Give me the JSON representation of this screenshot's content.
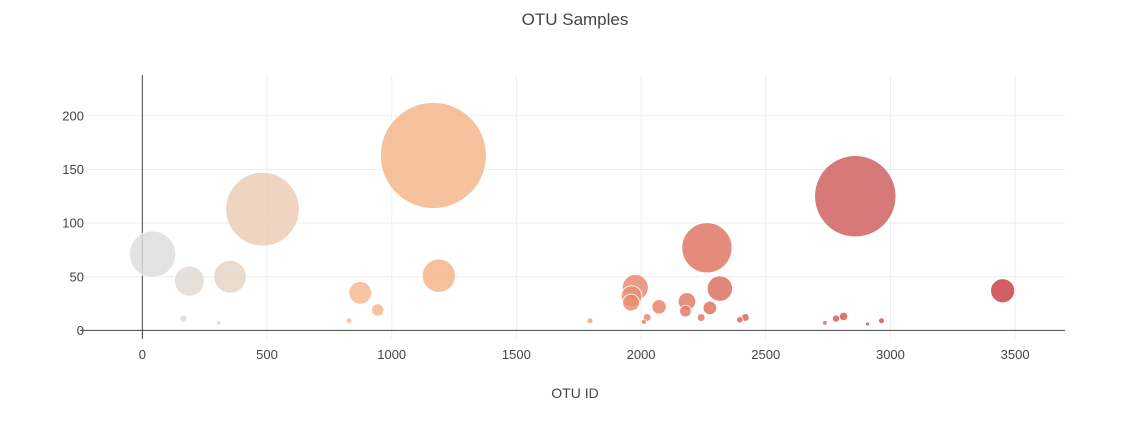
{
  "chart_data": {
    "type": "scatter",
    "title": "OTU Samples",
    "xlabel": "OTU ID",
    "ylabel": "",
    "xlim": [
      -250,
      3700
    ],
    "ylim": [
      -8,
      238
    ],
    "x_ticks": [
      0,
      500,
      1000,
      1500,
      2000,
      2500,
      3000,
      3500
    ],
    "y_ticks": [
      0,
      50,
      100,
      150,
      200
    ],
    "grid": true,
    "legend": "none",
    "size_encodes": "sample value (marker diameter proportional to y value)",
    "color_encodes": "OTU ID (greys to reds colorscale)",
    "points": [
      {
        "x": 41,
        "y": 71,
        "color": "#dddddd"
      },
      {
        "x": 165,
        "y": 11,
        "color": "#dcdcdc"
      },
      {
        "x": 189,
        "y": 46,
        "color": "#e1d8d2"
      },
      {
        "x": 306,
        "y": 7,
        "color": "#e3d6cc"
      },
      {
        "x": 352,
        "y": 50,
        "color": "#e5d3c4"
      },
      {
        "x": 482,
        "y": 113,
        "color": "#ebcbb3"
      },
      {
        "x": 829,
        "y": 9,
        "color": "#f3bc98"
      },
      {
        "x": 874,
        "y": 35,
        "color": "#f4b890"
      },
      {
        "x": 944,
        "y": 19,
        "color": "#f4b58b"
      },
      {
        "x": 1167,
        "y": 163,
        "color": "#f4b487"
      },
      {
        "x": 1189,
        "y": 51,
        "color": "#f3b285"
      },
      {
        "x": 1795,
        "y": 9,
        "color": "#efa279"
      },
      {
        "x": 1960,
        "y": 26,
        "color": "#e98c6e"
      },
      {
        "x": 1962,
        "y": 32,
        "color": "#ea9070"
      },
      {
        "x": 1977,
        "y": 40,
        "color": "#e8886c"
      },
      {
        "x": 2011,
        "y": 8,
        "color": "#e6856a"
      },
      {
        "x": 2024,
        "y": 12,
        "color": "#e58268"
      },
      {
        "x": 2072,
        "y": 22,
        "color": "#e47f66"
      },
      {
        "x": 2178,
        "y": 18,
        "color": "#e17a63"
      },
      {
        "x": 2184,
        "y": 27,
        "color": "#e07862"
      },
      {
        "x": 2241,
        "y": 12,
        "color": "#df7560"
      },
      {
        "x": 2264,
        "y": 77,
        "color": "#de715e"
      },
      {
        "x": 2276,
        "y": 21,
        "color": "#dd705d"
      },
      {
        "x": 2316,
        "y": 39,
        "color": "#db6d5b"
      },
      {
        "x": 2396,
        "y": 10,
        "color": "#d96858"
      },
      {
        "x": 2418,
        "y": 12,
        "color": "#d86657"
      },
      {
        "x": 2737,
        "y": 7,
        "color": "#d35c53"
      },
      {
        "x": 2782,
        "y": 11,
        "color": "#d25a52"
      },
      {
        "x": 2812,
        "y": 13,
        "color": "#d15950"
      },
      {
        "x": 2859,
        "y": 125,
        "color": "#d05c5c"
      },
      {
        "x": 2908,
        "y": 6,
        "color": "#cf5350"
      },
      {
        "x": 2964,
        "y": 9,
        "color": "#ce504e"
      },
      {
        "x": 3450,
        "y": 37,
        "color": "#c93c42"
      }
    ]
  }
}
